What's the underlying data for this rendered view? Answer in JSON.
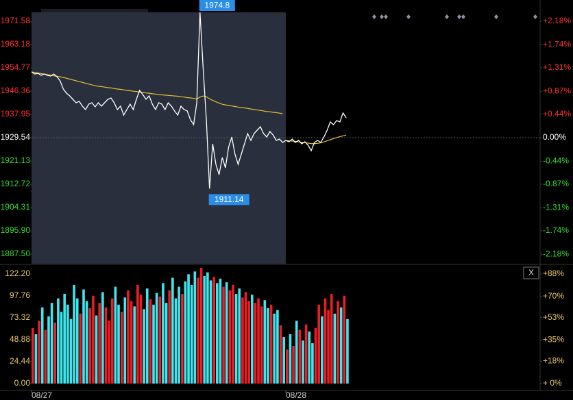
{
  "chart_data": [
    {
      "type": "line",
      "xlim": [
        0,
        160
      ],
      "ylim": [
        1884.04,
        1974.8
      ],
      "yticks": [
        1971.58,
        1963.18,
        1954.77,
        1946.36,
        1937.95,
        1929.54,
        1921.13,
        1912.72,
        1904.31,
        {
          "value": 1895.9,
          "label": "1895.90"
        },
        {
          "value": 1887.5,
          "label": "1887.50"
        }
      ],
      "y2lim": [
        -2.358,
        2.346
      ],
      "y2ticks": [
        {
          "value": 2.18,
          "label": "+2.18%"
        },
        {
          "value": 1.74,
          "label": "+1.74%"
        },
        {
          "value": 1.31,
          "label": "+1.31%"
        },
        {
          "value": 0.87,
          "label": "+0.87%"
        },
        {
          "value": 0.44,
          "label": "+0.44%"
        },
        {
          "value": 0,
          "label": "0.00%"
        },
        {
          "value": -0.44,
          "label": "-0.44%"
        },
        {
          "value": -0.87,
          "label": "-0.87%"
        },
        {
          "value": -1.31,
          "label": "-1.31%"
        },
        {
          "value": -1.74,
          "label": "-1.74%"
        },
        {
          "value": -2.18,
          "label": "-2.18%"
        }
      ],
      "up_color": "#ff3030",
      "down_color": "#33dd33",
      "neutral_color": "#ffffff",
      "series": [
        {
          "color": "#ffffff",
          "values": [
            1953.28,
            1952.54,
            1952.79,
            1952.05,
            1952.54,
            1952.05,
            1951.8,
            1952.54,
            1951.55,
            1950.07,
            1947.1,
            1945.62,
            1944.63,
            1943.4,
            1942.16,
            1942.65,
            1940.92,
            1939.68,
            1941.66,
            1942.16,
            1940.67,
            1942.16,
            1940.92,
            1942.16,
            1943.4,
            1943.89,
            1942.16,
            1939.68,
            1940.92,
            1937.7,
            1939.68,
            1941.66,
            1939.68,
            1943.4,
            1946.61,
            1945.12,
            1943.4,
            1944.63,
            1941.66,
            1939.68,
            1942.16,
            1941.66,
            1939.68,
            1942.16,
            1940.92,
            1939.19,
            1937.7,
            1940.92,
            1939.68,
            1939.19,
            1935.97,
            1934.24,
            1942.16,
            1974.8,
            1954.52,
            1935.97,
            1911.14,
            1927.32,
            1919.9,
            1916.19,
            1922.37,
            1918.66,
            1926.08,
            1929.79,
            1923.61,
            1919.9,
            1923.61,
            1927.32,
            1931.03,
            1928.55,
            1931.03,
            1932.26,
            1933.5,
            1931.03,
            1929.79,
            1931.77,
            1930.53,
            1928.55,
            1929.05,
            1927.81,
            1928.55,
            1928.06,
            1929.05,
            1927.81,
            1928.55,
            1927.32,
            1928.06,
            1926.82,
            1924.85,
            1927.81,
            1928.55,
            1927.81,
            1929.79,
            1932.26,
            1935.23,
            1934.24,
            1935.73,
            1935.23,
            1938.45,
            1936.71
          ]
        },
        {
          "color": "#e8c030",
          "values": [
            1953.3,
            1953.1,
            1952.9,
            1952.7,
            1952.5,
            1952.3,
            1952.1,
            1951.9,
            1951.7,
            1951.5,
            1951.3,
            1951.0,
            1950.7,
            1950.4,
            1950.1,
            1949.8,
            1949.5,
            1949.2,
            1948.9,
            1948.6,
            1948.3,
            1948.1,
            1948.0,
            1947.8,
            1947.6,
            1947.5,
            1947.3,
            1947.1,
            1947.0,
            1946.8,
            1946.6,
            1946.5,
            1946.3,
            1946.2,
            1946.0,
            1945.9,
            1945.7,
            1945.6,
            1945.4,
            1945.3,
            1945.1,
            1945.0,
            1944.9,
            1944.8,
            1944.7,
            1944.6,
            1944.5,
            1944.3,
            1944.2,
            1944.0,
            1943.9,
            1943.7,
            1943.5,
            1944.2,
            1944.6,
            1944.3,
            1943.6,
            1943.0,
            1942.5,
            1942.0,
            1941.6,
            1941.4,
            1941.2,
            1941.0,
            1940.8,
            1940.6,
            1940.4,
            1940.3,
            1940.1,
            1939.9,
            1939.7,
            1939.5,
            1939.4,
            1939.2,
            1939.0,
            1938.9,
            1938.7,
            1938.6,
            1938.4,
            1938.2,
            1928.6,
            1928.4,
            1928.3,
            1928.2,
            1928.0,
            1927.9,
            1927.8,
            1927.6,
            1927.4,
            1927.4,
            1927.5,
            1927.7,
            1928.0,
            1928.4,
            1928.8,
            1929.2,
            1929.6,
            1929.9,
            1930.2,
            1930.5
          ]
        }
      ],
      "annotations": [
        {
          "label": "1974.8",
          "index": 53
        },
        {
          "label": "1911.14",
          "index": 56
        }
      ]
    },
    {
      "type": "bar",
      "xlim": [
        0,
        160
      ],
      "xticks": [
        {
          "value": 0,
          "label": "08/27"
        },
        {
          "value": 80,
          "label": "08/28"
        }
      ],
      "ylim": [
        -7.64,
        131.37
      ],
      "yticks": [
        {
          "value": 122.2,
          "label": "122.20"
        },
        97.76,
        73.32,
        48.88,
        24.44,
        {
          "value": 0,
          "label": "0.00"
        }
      ],
      "y2lim": [
        -5.5,
        94.6
      ],
      "y2ticks": [
        {
          "value": 88,
          "label": "+88%"
        },
        {
          "value": 70,
          "label": "+70%"
        },
        {
          "value": 53,
          "label": "+53%"
        },
        {
          "value": 35,
          "label": "+35%"
        },
        {
          "value": 18,
          "label": "+18%"
        },
        {
          "value": 0,
          "label": "+ 0%"
        }
      ],
      "tick_color": "#e8c66a",
      "up_color": "#ee1c24",
      "down_color": "#3ee6ee",
      "values": [
        62,
        55,
        70,
        85,
        60,
        75,
        90,
        68,
        95,
        80,
        100,
        88,
        72,
        110,
        95,
        78,
        105,
        92,
        84,
        98,
        76,
        90,
        102,
        85,
        70,
        95,
        108,
        88,
        80,
        96,
        104,
        92,
        86,
        110,
        99,
        83,
        106,
        94,
        88,
        101,
        97,
        112,
        90,
        104,
        118,
        95,
        108,
        100,
        114,
        122,
        110,
        125,
        118,
        129,
        120,
        124,
        115,
        119,
        112,
        117,
        108,
        113,
        104,
        110,
        100,
        106,
        96,
        102,
        92,
        99,
        90,
        95,
        86,
        93,
        84,
        88,
        78,
        82,
        65,
        52,
        38,
        55,
        42,
        70,
        60,
        48,
        66,
        58,
        45,
        62,
        88,
        75,
        95,
        82,
        100,
        78,
        92,
        85,
        98,
        72
      ],
      "close_button": "X"
    }
  ]
}
